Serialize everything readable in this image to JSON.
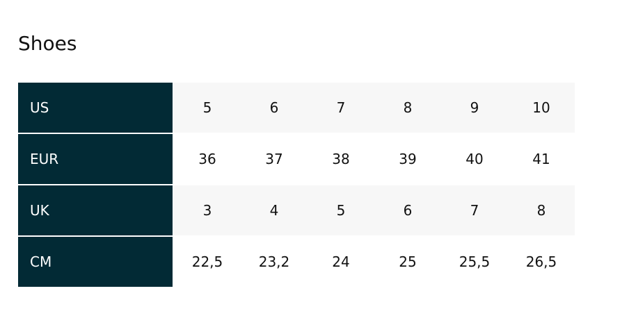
{
  "title": "Shoes",
  "table": {
    "rows": [
      [
        "US",
        "5",
        "6",
        "7",
        "8",
        "9",
        "10"
      ],
      [
        "EUR",
        "36",
        "37",
        "38",
        "39",
        "40",
        "41"
      ],
      [
        "UK",
        "3",
        "4",
        "5",
        "6",
        "7",
        "8"
      ],
      [
        "CM",
        "22,5",
        "23,2",
        "24",
        "25",
        "25,5",
        "26,5"
      ]
    ]
  }
}
